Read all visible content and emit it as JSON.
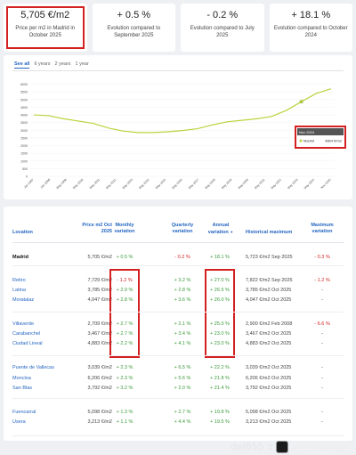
{
  "stats": [
    {
      "value": "5,705 €/m2",
      "label": "Price per m2 in Madrid in October 2025"
    },
    {
      "value": "+ 0.5 %",
      "label": "Evolution compared to September 2025"
    },
    {
      "value": "- 0.2 %",
      "label": "Evolution compared to July 2025"
    },
    {
      "value": "+ 18.1 %",
      "label": "Evolution compared to October 2024"
    }
  ],
  "tabs": [
    "See all",
    "6 years",
    "2 years",
    "1 year"
  ],
  "chart": {
    "y_ticks": [
      "6000",
      "5500",
      "5000",
      "4500",
      "4000",
      "3500",
      "3000",
      "2500",
      "2000",
      "1500",
      "1000",
      "500",
      "0"
    ],
    "x_ticks": [
      "Jan 2007",
      "Jan 2008",
      "May 2009",
      "May 2010",
      "May 2011",
      "May 2012",
      "May 2013",
      "May 2014",
      "May 2015",
      "May 2016",
      "May 2017",
      "May 2018",
      "May 2019",
      "May 2020",
      "May 2021",
      "May 2022",
      "May 2023",
      "May 2024",
      "Nov 2025"
    ],
    "tooltip": {
      "date": "Nov 2024",
      "label": "Madrid",
      "value": "4864 €/m2"
    },
    "line_color": "#b8d43c"
  },
  "chart_data": {
    "type": "line",
    "series": [
      {
        "name": "Madrid",
        "x": [
          "2007",
          "2008",
          "2009",
          "2010",
          "2011",
          "2012",
          "2013",
          "2014",
          "2015",
          "2016",
          "2017",
          "2018",
          "2019",
          "2020",
          "2021",
          "2022",
          "2023",
          "2024-05",
          "2024-11",
          "2025-05",
          "2025-11"
        ],
        "values": [
          4000,
          3950,
          3750,
          3600,
          3450,
          3150,
          2950,
          2850,
          2850,
          2900,
          2980,
          3100,
          3350,
          3550,
          3650,
          3750,
          3900,
          4300,
          4864,
          5400,
          5705
        ]
      }
    ],
    "ylim": [
      0,
      6500
    ]
  },
  "table": {
    "headers": {
      "location": "Location",
      "price": "Price m2 Oct 2025",
      "monthly": "Monthly variation",
      "quarterly": "Quarterly variation",
      "annual": "Annual variation",
      "historical": "Historical maximum",
      "maximum": "Maximum variation"
    },
    "rows": [
      {
        "location": "Madrid",
        "price": "5,705 €/m2",
        "monthly": "+ 0.5 %",
        "quarterly": "- 0.2 %",
        "annual": "+ 18.1 %",
        "historical": "5,723 €/m2 Sep 2025",
        "maximum": "- 0.3 %"
      },
      {
        "location": "Retiro",
        "price": "7,729 €/m2",
        "monthly": "- 1.2 %",
        "quarterly": "+ 3.2 %",
        "annual": "+ 27.0 %",
        "historical": "7,822 €/m2 Sep 2025",
        "maximum": "- 1.2 %"
      },
      {
        "location": "Latina",
        "price": "3,785 €/m2",
        "monthly": "+ 2.9 %",
        "quarterly": "+ 2.8 %",
        "annual": "+ 26.5 %",
        "historical": "3,785 €/m2 Oct 2025",
        "maximum": "-"
      },
      {
        "location": "Moratalaz",
        "price": "4,047 €/m2",
        "monthly": "+ 2.8 %",
        "quarterly": "+ 3.6 %",
        "annual": "+ 26.0 %",
        "historical": "4,047 €/m2 Oct 2025",
        "maximum": "-"
      },
      {
        "location": "Villaverde",
        "price": "2,709 €/m2",
        "monthly": "+ 2.7 %",
        "quarterly": "+ 2.1 %",
        "annual": "+ 25.0 %",
        "historical": "2,900 €/m2 Feb 2008",
        "maximum": "- 6.6 %"
      },
      {
        "location": "Carabanchel",
        "price": "3,467 €/m2",
        "monthly": "+ 2.7 %",
        "quarterly": "+ 3.4 %",
        "annual": "+ 23.0 %",
        "historical": "3,467 €/m2 Oct 2025",
        "maximum": "-"
      },
      {
        "location": "Ciudad Lineal",
        "price": "4,883 €/m2",
        "monthly": "+ 2.2 %",
        "quarterly": "+ 4.1 %",
        "annual": "+ 23.0 %",
        "historical": "4,883 €/m2 Oct 2025",
        "maximum": "-"
      },
      {
        "location": "Puente de Vallecas",
        "price": "3,039 €/m2",
        "monthly": "+ 2.3 %",
        "quarterly": "+ 6.5 %",
        "annual": "+ 22.2 %",
        "historical": "3,039 €/m2 Oct 2025",
        "maximum": "-"
      },
      {
        "location": "Moncloa",
        "price": "6,206 €/m2",
        "monthly": "+ 2.3 %",
        "quarterly": "+ 5.6 %",
        "annual": "+ 21.8 %",
        "historical": "6,206 €/m2 Oct 2025",
        "maximum": "-"
      },
      {
        "location": "San Blas",
        "price": "3,792 €/m2",
        "monthly": "+ 3.2 %",
        "quarterly": "+ 2.0 %",
        "annual": "+ 21.4 %",
        "historical": "3,792 €/m2 Oct 2025",
        "maximum": "-"
      },
      {
        "location": "Fuencarral",
        "price": "5,098 €/m2",
        "monthly": "+ 1.3 %",
        "quarterly": "+ 2.7 %",
        "annual": "+ 19.8 %",
        "historical": "5,098 €/m2 Oct 2025",
        "maximum": "-"
      },
      {
        "location": "Usera",
        "price": "3,213 €/m2",
        "monthly": "+ 1.1 %",
        "quarterly": "+ 4.4 %",
        "annual": "+ 19.5 %",
        "historical": "3,213 €/m2 Oct 2025",
        "maximum": "-"
      }
    ]
  },
  "watermark": {
    "user": "del855",
    "separator": "z",
    "site": "wykop.pl"
  },
  "colors": {
    "accent": "#2566c2",
    "positive": "#3a9a3a",
    "negative": "#d42020",
    "highlight": "#d42020"
  }
}
